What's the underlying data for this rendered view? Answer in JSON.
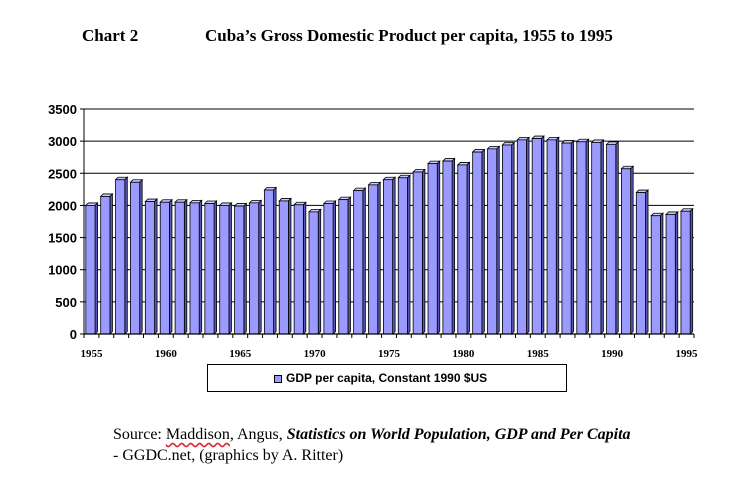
{
  "heading": {
    "chart_number": "Chart 2",
    "title": "Cuba’s Gross Domestic Product per capita, 1955 to 1995"
  },
  "colors": {
    "bar_fill": "#9b9bff",
    "bar_side": "#5757b8",
    "bar_top": "#c9c9ff"
  },
  "chart_data": {
    "type": "bar",
    "title": "Cuba’s Gross Domestic Product per capita, 1955 to 1995",
    "xlabel": "",
    "ylabel": "",
    "ylim": [
      0,
      3500
    ],
    "yticks": [
      "0",
      "500",
      "1000",
      "1500",
      "2000",
      "2500",
      "3000",
      "3500"
    ],
    "xtick_labels": [
      "1955",
      "1960",
      "1965",
      "1970",
      "1975",
      "1980",
      "1985",
      "1990",
      "1995"
    ],
    "grid": true,
    "legend_placement": "bottom",
    "x": [
      1955,
      1956,
      1957,
      1958,
      1959,
      1960,
      1961,
      1962,
      1963,
      1964,
      1965,
      1966,
      1967,
      1968,
      1969,
      1970,
      1971,
      1972,
      1973,
      1974,
      1975,
      1976,
      1977,
      1978,
      1979,
      1980,
      1981,
      1982,
      1983,
      1984,
      1985,
      1986,
      1987,
      1988,
      1989,
      1990,
      1991,
      1992,
      1993,
      1994,
      1995
    ],
    "series": [
      {
        "name": "GDP per capita,  Constant 1990 $US",
        "values": [
          2000,
          2140,
          2400,
          2360,
          2060,
          2050,
          2050,
          2040,
          2030,
          2000,
          1990,
          2040,
          2240,
          2070,
          2010,
          1900,
          2030,
          2090,
          2230,
          2320,
          2400,
          2430,
          2520,
          2650,
          2690,
          2630,
          2830,
          2880,
          2940,
          3020,
          3040,
          3020,
          2970,
          2990,
          2980,
          2950,
          2570,
          2200,
          1840,
          1860,
          1910
        ]
      }
    ]
  },
  "legend": {
    "label": "GDP per capita,  Constant 1990 $US"
  },
  "source": {
    "prefix": "Source: ",
    "author_1": "Maddison",
    "author_2": ", Angus, ",
    "work": "Statistics on World Population, GDP and Per Capita",
    "suffix": "- GGDC.net, (graphics by A. Ritter)"
  }
}
